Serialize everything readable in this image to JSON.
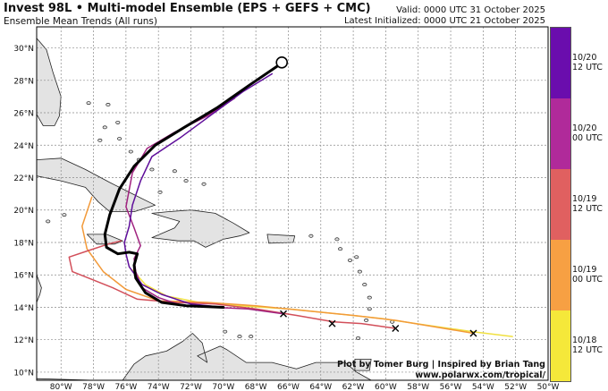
{
  "header": {
    "title": "Invest 98L • Multi-model Ensemble (EPS + GEFS + CMC)",
    "subtitle": "Ensemble Mean Trends (All runs)",
    "valid": "Valid: 0000 UTC 31 October 2025",
    "latest": "Latest Initialized: 0000 UTC 21 October 2025"
  },
  "credits": {
    "line1": "Plot by Tomer Burg | Inspired by Brian Tang",
    "line2": "www.polarwx.com/tropical/"
  },
  "map": {
    "lat_labels": [
      "10°N",
      "12°N",
      "14°N",
      "16°N",
      "18°N",
      "20°N",
      "22°N",
      "24°N",
      "26°N",
      "28°N",
      "30°N"
    ],
    "lon_labels": [
      "80°W",
      "78°W",
      "76°W",
      "74°W",
      "72°W",
      "70°W",
      "68°W",
      "66°W",
      "64°W",
      "62°W",
      "60°W",
      "58°W",
      "56°W",
      "54°W",
      "52°W",
      "50°W"
    ],
    "lat_range": [
      9.5,
      31.3
    ],
    "lon_range": [
      -81.5,
      -50.0
    ],
    "land_color": "#e3e3e3",
    "ocean_color": "#ffffff",
    "grid": true
  },
  "colorbar": {
    "entries": [
      {
        "label_1": "10/20",
        "label_2": "12 UTC",
        "color": "#6a0dad"
      },
      {
        "label_1": "10/20",
        "label_2": "00 UTC",
        "color": "#b02a9a"
      },
      {
        "label_1": "10/19",
        "label_2": "12 UTC",
        "color": "#e06060"
      },
      {
        "label_1": "10/19",
        "label_2": "00 UTC",
        "color": "#f7a043"
      },
      {
        "label_1": "10/18",
        "label_2": "12 UTC",
        "color": "#f5e83a"
      }
    ]
  },
  "tracks": [
    {
      "run": "10/18 12 UTC",
      "color": "#f0e040",
      "points": [
        [
          -52.2,
          12.2
        ],
        [
          -54.7,
          12.5
        ],
        [
          -57.5,
          12.9
        ],
        [
          -60.2,
          13.3
        ],
        [
          -63.0,
          13.6
        ],
        [
          -66.0,
          13.9
        ],
        [
          -69.0,
          14.1
        ],
        [
          -71.5,
          14.3
        ],
        [
          -73.5,
          14.7
        ],
        [
          -74.8,
          15.4
        ],
        [
          -75.6,
          16.3
        ]
      ]
    },
    {
      "run": "10/19 00 UTC",
      "color": "#f29a3a",
      "points": [
        [
          -54.6,
          12.4
        ],
        [
          -57.0,
          12.8
        ],
        [
          -59.4,
          13.2
        ],
        [
          -62.0,
          13.5
        ],
        [
          -65.0,
          13.8
        ],
        [
          -68.0,
          14.1
        ],
        [
          -71.0,
          14.3
        ],
        [
          -74.0,
          14.4
        ],
        [
          -76.0,
          15.1
        ],
        [
          -77.4,
          16.2
        ],
        [
          -78.4,
          17.6
        ],
        [
          -78.7,
          19.0
        ],
        [
          -78.1,
          20.8
        ]
      ]
    },
    {
      "run": "10/19 12 UTC",
      "color": "#d24f5a",
      "points": [
        [
          -59.4,
          12.7
        ],
        [
          -61.5,
          13.0
        ],
        [
          -63.2,
          13.1
        ],
        [
          -65.5,
          13.5
        ],
        [
          -68.0,
          13.9
        ],
        [
          -70.5,
          14.2
        ],
        [
          -73.0,
          14.3
        ],
        [
          -75.3,
          14.5
        ],
        [
          -76.8,
          15.2
        ],
        [
          -78.3,
          15.8
        ],
        [
          -79.3,
          16.2
        ],
        [
          -79.5,
          17.1
        ],
        [
          -78.3,
          17.5
        ],
        [
          -77.1,
          17.9
        ],
        [
          -76.3,
          18.1
        ]
      ]
    },
    {
      "run": "10/20 00 UTC",
      "color": "#a0227f",
      "points": [
        [
          -66.3,
          13.6
        ],
        [
          -68.5,
          13.9
        ],
        [
          -70.5,
          14.0
        ],
        [
          -72.5,
          14.1
        ],
        [
          -74.0,
          14.6
        ],
        [
          -75.0,
          15.2
        ],
        [
          -75.4,
          16.2
        ],
        [
          -75.5,
          17.0
        ],
        [
          -75.1,
          17.8
        ],
        [
          -75.5,
          18.9
        ],
        [
          -76.0,
          20.2
        ],
        [
          -75.6,
          22.3
        ],
        [
          -74.7,
          23.8
        ],
        [
          -73.0,
          24.8
        ],
        [
          -71.0,
          25.8
        ],
        [
          -69.3,
          26.9
        ]
      ]
    },
    {
      "run": "10/20 12 UTC",
      "color": "#5e0d9a",
      "points": [
        [
          -70.0,
          14.0
        ],
        [
          -72.0,
          14.2
        ],
        [
          -73.8,
          14.8
        ],
        [
          -75.0,
          15.4
        ],
        [
          -75.8,
          16.5
        ],
        [
          -76.0,
          17.3
        ],
        [
          -76.1,
          18.0
        ],
        [
          -75.8,
          19.0
        ],
        [
          -75.6,
          20.3
        ],
        [
          -75.1,
          21.8
        ],
        [
          -74.4,
          23.3
        ],
        [
          -72.6,
          24.5
        ],
        [
          -70.7,
          25.9
        ],
        [
          -68.8,
          27.3
        ],
        [
          -67.0,
          28.4
        ]
      ]
    },
    {
      "run": "Latest",
      "color": "#000000",
      "points": [
        [
          -70.0,
          14.0
        ],
        [
          -72.3,
          14.1
        ],
        [
          -73.8,
          14.3
        ],
        [
          -74.8,
          14.9
        ],
        [
          -75.4,
          15.8
        ],
        [
          -75.5,
          16.6
        ],
        [
          -75.3,
          17.3
        ],
        [
          -75.8,
          17.4
        ],
        [
          -76.5,
          17.3
        ],
        [
          -77.2,
          17.7
        ],
        [
          -77.3,
          18.5
        ],
        [
          -77.0,
          19.7
        ],
        [
          -76.4,
          21.3
        ],
        [
          -75.5,
          22.7
        ],
        [
          -74.2,
          24.0
        ],
        [
          -72.4,
          25.1
        ],
        [
          -70.4,
          26.3
        ],
        [
          -68.4,
          27.7
        ],
        [
          -66.5,
          29.0
        ]
      ]
    }
  ],
  "start_markers": [
    {
      "lon": -54.6,
      "lat": 12.4
    },
    {
      "lon": -59.4,
      "lat": 12.7
    },
    {
      "lon": -63.3,
      "lat": 13.0
    },
    {
      "lon": -66.3,
      "lat": 13.6
    }
  ],
  "end_marker": {
    "lon": -66.4,
    "lat": 29.1
  }
}
